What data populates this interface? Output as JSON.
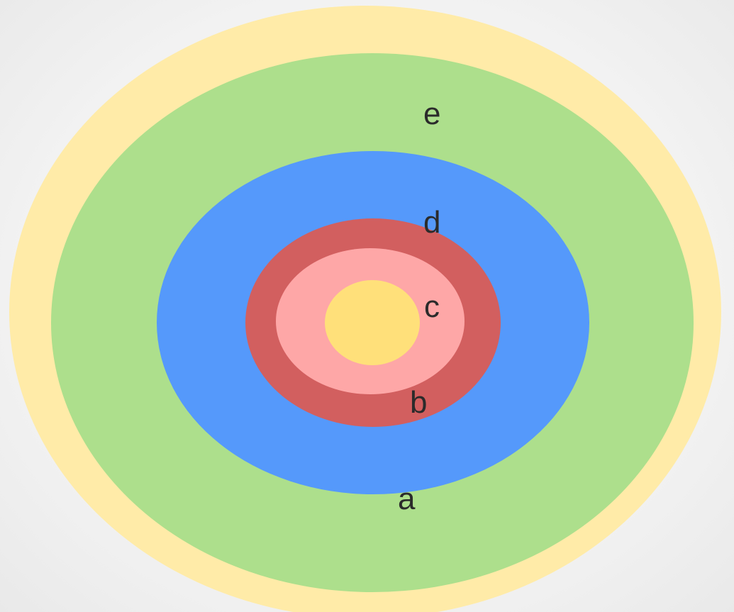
{
  "diagram": {
    "rings": [
      {
        "id": "outer-yellow",
        "color": "#ffeba8"
      },
      {
        "id": "green",
        "color": "#addf8c"
      },
      {
        "id": "blue",
        "color": "#5599fb"
      },
      {
        "id": "red",
        "color": "#d25f5f"
      },
      {
        "id": "pink",
        "color": "#fea7a7"
      },
      {
        "id": "core-yellow",
        "color": "#ffe07a"
      }
    ],
    "labels": {
      "e": "e",
      "d": "d",
      "c": "c",
      "b": "b",
      "a": "a"
    }
  }
}
